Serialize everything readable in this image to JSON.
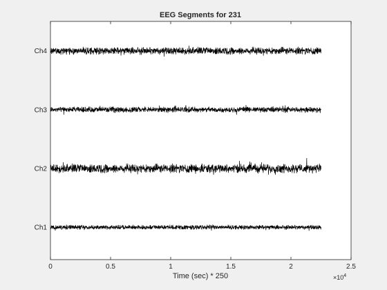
{
  "chart_data": {
    "type": "line",
    "title": "EEG Segments for 231",
    "xlabel": "Time (sec) * 250",
    "ylabel": "",
    "x_exponent_label": "×10",
    "x_exponent_power": "4",
    "xlim": [
      0,
      25000
    ],
    "x_data_end": 22500,
    "xticks": [
      0,
      0.5,
      1,
      1.5,
      2,
      2.5
    ],
    "xtick_labels": [
      "0",
      "0.5",
      "1",
      "1.5",
      "2",
      "2.5"
    ],
    "grid": false,
    "series": [
      {
        "name": "Ch1",
        "offset": 1,
        "amplitude": 0.055
      },
      {
        "name": "Ch2",
        "offset": 2,
        "amplitude": 0.11
      },
      {
        "name": "Ch3",
        "offset": 3,
        "amplitude": 0.07
      },
      {
        "name": "Ch4",
        "offset": 4,
        "amplitude": 0.09
      }
    ],
    "colors": {
      "trace": "#000000",
      "axes_bg": "#ffffff",
      "figure_bg": "#f0f0f0"
    }
  }
}
